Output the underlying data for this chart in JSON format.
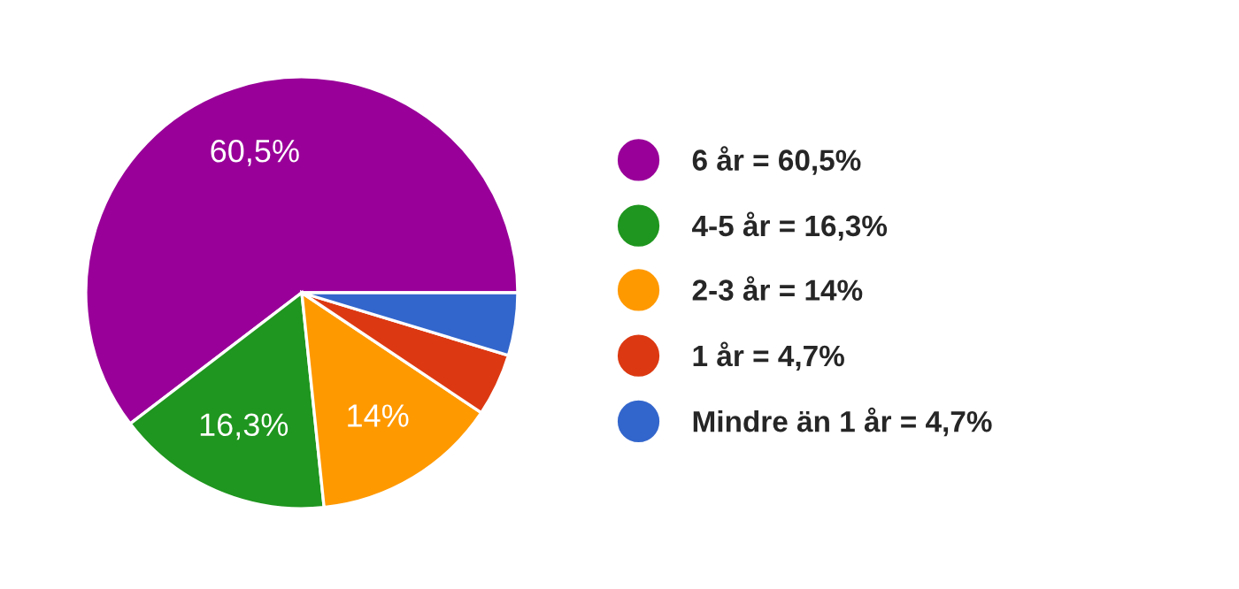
{
  "chart_data": {
    "type": "pie",
    "categories": [
      "6 år = 60,5%",
      "4-5 år = 16,3%",
      "2-3 år = 14%",
      "1 år = 4,7%",
      "Mindre än 1 år = 4,7%"
    ],
    "values": [
      60.5,
      16.3,
      14,
      4.7,
      4.7
    ],
    "colors": [
      "#990099",
      "#1f961f",
      "#ff9900",
      "#dc3912",
      "#3366cc"
    ],
    "value_labels": [
      "60,5%",
      "16,3%",
      "14%",
      null,
      null
    ],
    "legend": "right"
  }
}
